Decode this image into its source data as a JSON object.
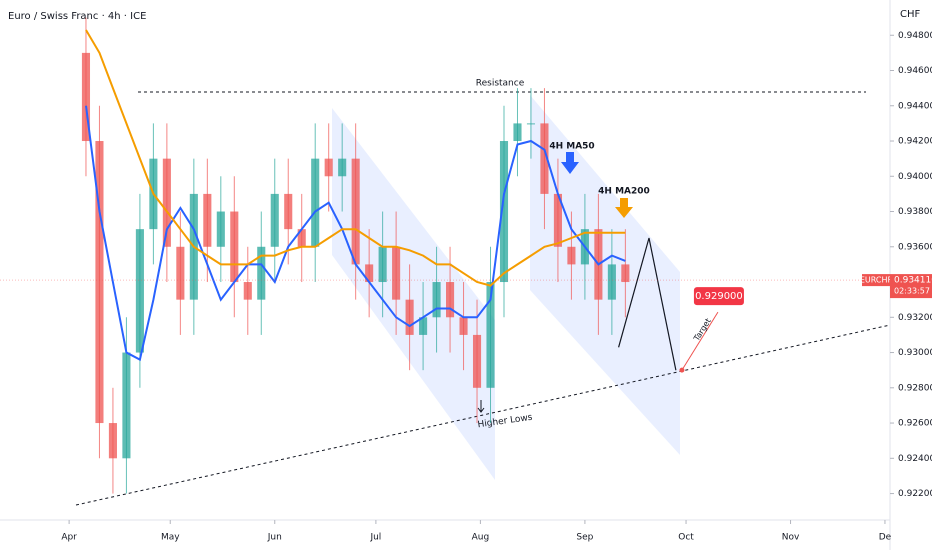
{
  "chart_data": {
    "type": "candlestick",
    "title": "Euro / Swiss Franc · 4h · ICE",
    "currency": "CHF",
    "symbol": "EURCHF",
    "last_price": {
      "value": 0.93411,
      "label": "0.934110"
    },
    "countdown": "02:33:57",
    "x": [
      5,
      9,
      13,
      17,
      21,
      25,
      29,
      33,
      37,
      41,
      45,
      49,
      53,
      57,
      61,
      65,
      69,
      73,
      77,
      81,
      85,
      89,
      93,
      97,
      101,
      105,
      109,
      113,
      117,
      121,
      125,
      129,
      133,
      137,
      141,
      145,
      149,
      153,
      157,
      161,
      165
    ],
    "open": [
      0.947,
      0.942,
      0.926,
      0.924,
      0.93,
      0.937,
      0.941,
      0.936,
      0.933,
      0.939,
      0.936,
      0.938,
      0.934,
      0.933,
      0.936,
      0.939,
      0.937,
      0.936,
      0.941,
      0.94,
      0.941,
      0.935,
      0.934,
      0.936,
      0.933,
      0.931,
      0.932,
      0.934,
      0.932,
      0.931,
      0.928,
      0.934,
      0.942,
      0.943,
      0.943,
      0.939,
      0.936,
      0.935,
      0.937,
      0.933,
      0.935
    ],
    "high": [
      0.949,
      0.944,
      0.928,
      0.932,
      0.939,
      0.943,
      0.943,
      0.938,
      0.941,
      0.941,
      0.94,
      0.94,
      0.936,
      0.938,
      0.941,
      0.941,
      0.939,
      0.943,
      0.943,
      0.943,
      0.943,
      0.937,
      0.938,
      0.938,
      0.935,
      0.934,
      0.936,
      0.936,
      0.934,
      0.933,
      0.936,
      0.944,
      0.945,
      0.945,
      0.945,
      0.941,
      0.938,
      0.939,
      0.939,
      0.937,
      0.937
    ],
    "low": [
      0.94,
      0.924,
      0.922,
      0.922,
      0.928,
      0.935,
      0.934,
      0.931,
      0.931,
      0.934,
      0.934,
      0.932,
      0.931,
      0.931,
      0.934,
      0.935,
      0.934,
      0.934,
      0.938,
      0.938,
      0.933,
      0.932,
      0.932,
      0.931,
      0.929,
      0.929,
      0.93,
      0.93,
      0.929,
      0.926,
      0.926,
      0.932,
      0.94,
      0.941,
      0.937,
      0.934,
      0.933,
      0.933,
      0.931,
      0.931,
      0.932
    ],
    "close": [
      0.942,
      0.926,
      0.924,
      0.93,
      0.937,
      0.941,
      0.936,
      0.933,
      0.939,
      0.936,
      0.938,
      0.934,
      0.933,
      0.936,
      0.939,
      0.937,
      0.936,
      0.941,
      0.94,
      0.941,
      0.935,
      0.934,
      0.936,
      0.933,
      0.931,
      0.932,
      0.934,
      0.932,
      0.931,
      0.928,
      0.934,
      0.942,
      0.943,
      0.943,
      0.939,
      0.936,
      0.935,
      0.937,
      0.933,
      0.935,
      0.934
    ],
    "up_color": "#26a69a",
    "down_color": "#ef5350",
    "series": [
      {
        "name": "4H MA50",
        "color": "#2962ff",
        "values": [
          0.944,
          0.938,
          0.934,
          0.93,
          0.9296,
          0.933,
          0.937,
          0.9382,
          0.937,
          0.935,
          0.933,
          0.934,
          0.935,
          0.935,
          0.934,
          0.936,
          0.937,
          0.938,
          0.9385,
          0.937,
          0.935,
          0.934,
          0.933,
          0.932,
          0.9315,
          0.932,
          0.9325,
          0.9325,
          0.932,
          0.932,
          0.933,
          0.939,
          0.9418,
          0.942,
          0.9415,
          0.939,
          0.937,
          0.936,
          0.935,
          0.9355,
          0.9352
        ]
      },
      {
        "name": "4H MA200",
        "color": "#f59d00",
        "values": [
          0.9483,
          0.947,
          0.945,
          0.943,
          0.941,
          0.939,
          0.938,
          0.937,
          0.936,
          0.9355,
          0.935,
          0.935,
          0.935,
          0.9355,
          0.9355,
          0.9358,
          0.936,
          0.936,
          0.9365,
          0.937,
          0.937,
          0.9365,
          0.936,
          0.936,
          0.9358,
          0.9355,
          0.935,
          0.935,
          0.9345,
          0.934,
          0.9338,
          0.9345,
          0.935,
          0.9355,
          0.936,
          0.9362,
          0.9365,
          0.9368,
          0.9368,
          0.9368,
          0.9368
        ]
      }
    ],
    "projection": {
      "x": [
        163,
        172,
        180
      ],
      "values": [
        0.9303,
        0.9365,
        0.929
      ]
    },
    "target": {
      "value": 0.929,
      "label": "0.929000"
    },
    "annotations": {
      "resistance": "Resistance",
      "higher_lows": "Higher Lows",
      "target": "Target"
    },
    "xlim": [
      -20.5,
      243.5
    ],
    "xticks": [
      {
        "value": 0,
        "label": "Apr"
      },
      {
        "value": 30,
        "label": "May"
      },
      {
        "value": 61,
        "label": "Jun"
      },
      {
        "value": 91,
        "label": "Jul"
      },
      {
        "value": 122,
        "label": "Aug"
      },
      {
        "value": 153,
        "label": "Sep"
      },
      {
        "value": 183,
        "label": "Oct"
      },
      {
        "value": 214,
        "label": "Nov"
      },
      {
        "value": 242,
        "label": "De"
      }
    ],
    "ylim": [
      0.9205,
      0.95
    ],
    "yticks": [
      {
        "value": 0.922,
        "label": "0.922000"
      },
      {
        "value": 0.924,
        "label": "0.924000"
      },
      {
        "value": 0.926,
        "label": "0.926000"
      },
      {
        "value": 0.928,
        "label": "0.928000"
      },
      {
        "value": 0.93,
        "label": "0.930000"
      },
      {
        "value": 0.932,
        "label": "0.932000"
      },
      {
        "value": 0.934,
        "label": "0.934000"
      },
      {
        "value": 0.936,
        "label": "0.936000"
      },
      {
        "value": 0.938,
        "label": "0.938000"
      },
      {
        "value": 0.94,
        "label": "0.940000"
      },
      {
        "value": 0.942,
        "label": "0.942000"
      },
      {
        "value": 0.944,
        "label": "0.944000"
      },
      {
        "value": 0.946,
        "label": "0.946000"
      },
      {
        "value": 0.948,
        "label": "0.948000"
      }
    ]
  }
}
